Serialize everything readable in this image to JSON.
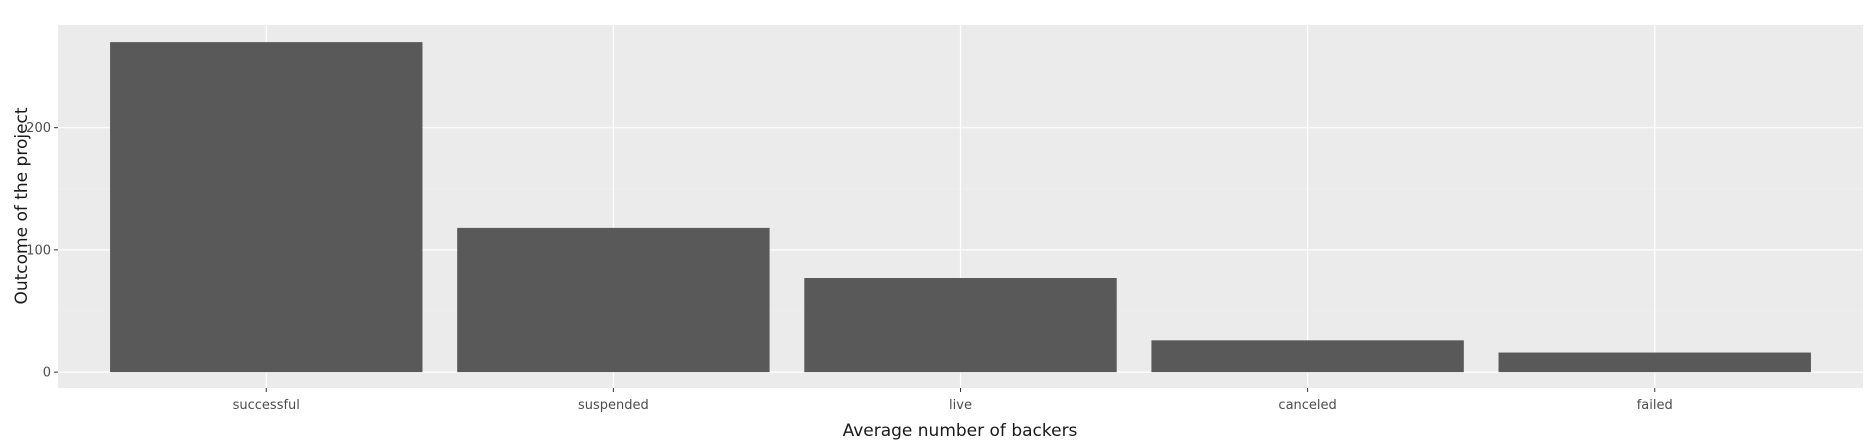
{
  "chart_data": {
    "type": "bar",
    "title": "",
    "xlabel": "Average number of backers",
    "ylabel": "Outcome of the project",
    "categories": [
      "successful",
      "suspended",
      "live",
      "canceled",
      "failed"
    ],
    "values": [
      270,
      118,
      77,
      26,
      16
    ],
    "ylim": [
      -13,
      284
    ],
    "yticks": [
      0,
      100,
      200
    ],
    "grid": true,
    "legend": "none",
    "colors": {
      "bar": "#595959",
      "panel": "#ebebeb",
      "grid_major": "#ffffff",
      "background": "#ffffff"
    }
  }
}
